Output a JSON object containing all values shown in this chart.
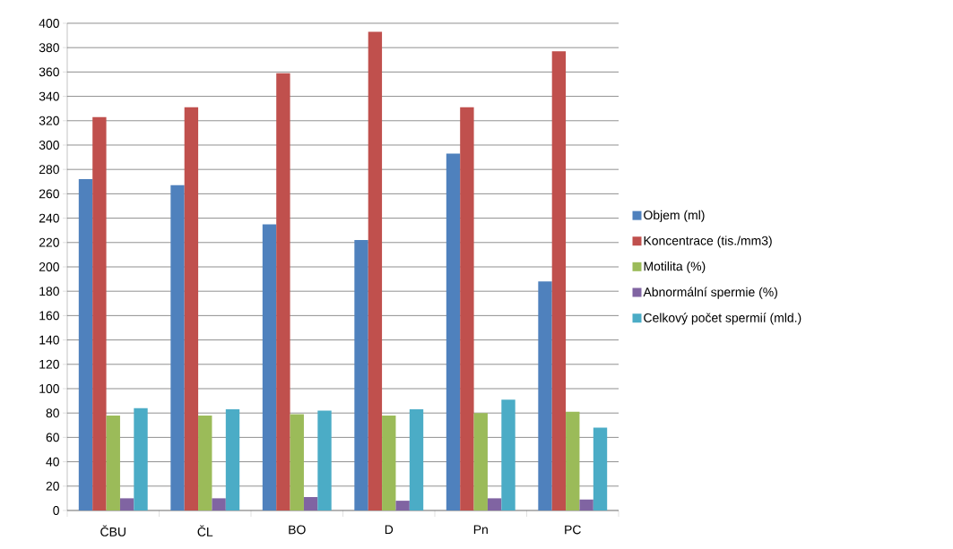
{
  "chart_data": {
    "type": "bar",
    "categories": [
      "ČBU",
      "ČL",
      "BO",
      "D",
      "Pn",
      "PC"
    ],
    "series": [
      {
        "name": "Objem (ml)",
        "color": "#4f81bd",
        "values": [
          272,
          267,
          235,
          222,
          293,
          188
        ]
      },
      {
        "name": "Koncentrace (tis./mm3)",
        "color": "#c0504d",
        "values": [
          323,
          331,
          359,
          393,
          331,
          377
        ]
      },
      {
        "name": "Motilita (%)",
        "color": "#9bbb59",
        "values": [
          78,
          78,
          79,
          78,
          80,
          81
        ]
      },
      {
        "name": "Abnormální spermie (%)",
        "color": "#8064a2",
        "values": [
          10,
          10,
          11,
          8,
          10,
          9
        ]
      },
      {
        "name": "Celkový počet spermií (mld.)",
        "color": "#4bacc6",
        "values": [
          84,
          83,
          82,
          83,
          91,
          68
        ]
      }
    ],
    "ylim": [
      0,
      400
    ],
    "yticks": [
      0,
      20,
      40,
      60,
      80,
      100,
      120,
      140,
      160,
      180,
      200,
      220,
      240,
      260,
      280,
      300,
      320,
      340,
      360,
      380,
      400
    ],
    "grid": "y",
    "legend": "right"
  }
}
